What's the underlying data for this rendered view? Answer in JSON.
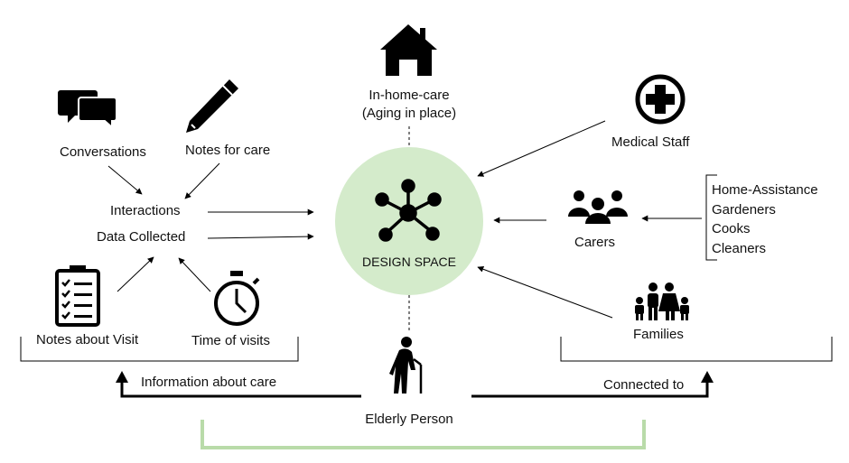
{
  "nodes": {
    "in_home_care_line1": "In-home-care",
    "in_home_care_line2": "(Aging in place)",
    "conversations": "Conversations",
    "notes_for_care": "Notes for care",
    "interactions": "Interactions",
    "data_collected": "Data Collected",
    "notes_about_visit": "Notes about Visit",
    "time_of_visits": "Time of visits",
    "design_space": "DESIGN SPACE",
    "medical_staff": "Medical Staff",
    "carers": "Carers",
    "families": "Families",
    "elderly_person": "Elderly Person"
  },
  "carer_types": [
    "Home-Assistance",
    "Gardeners",
    "Cooks",
    "Cleaners"
  ],
  "connections": {
    "information_about_care": "Information about care",
    "connected_to": "Connected to"
  },
  "colors": {
    "design_space_fill": "#d4ebcb",
    "bracket_green": "#b9dba9",
    "ink": "#000000"
  },
  "icons": [
    "house-icon",
    "speech-bubbles-icon",
    "pencil-icon",
    "checklist-icon",
    "stopwatch-icon",
    "hub-network-icon",
    "medical-cross-icon",
    "group-icon",
    "family-icon",
    "elderly-person-cane-icon"
  ]
}
